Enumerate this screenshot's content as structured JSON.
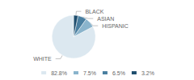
{
  "chart_data": {
    "type": "pie",
    "categories": [
      "WHITE",
      "HISPANIC",
      "ASIAN",
      "BLACK"
    ],
    "values": [
      82.8,
      7.5,
      6.5,
      3.2
    ],
    "value_labels": [
      "82.8%",
      "7.5%",
      "6.5%",
      "3.2%"
    ],
    "colors": [
      "#dce8f0",
      "#8ab4cc",
      "#4a7fa0",
      "#1f4e6e"
    ],
    "legend": "bottom"
  }
}
